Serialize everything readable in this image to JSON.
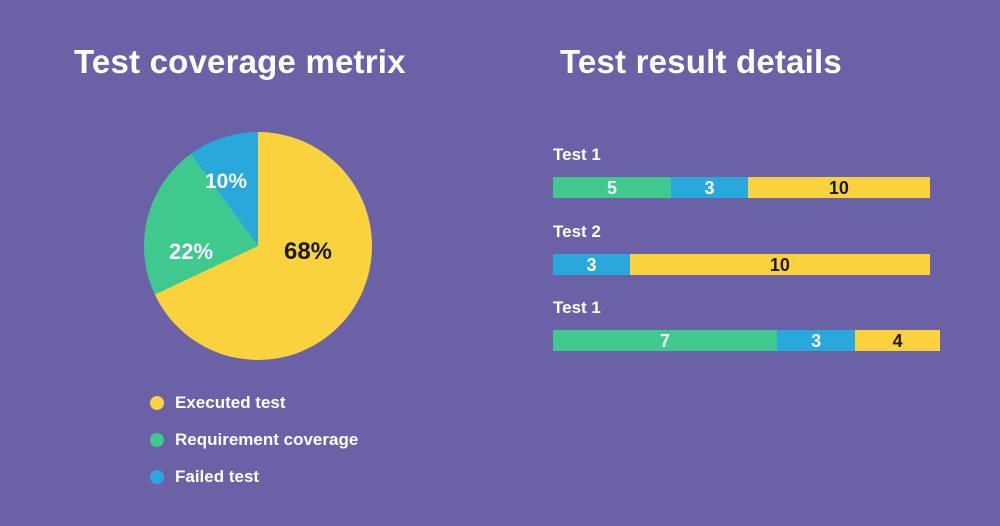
{
  "colors": {
    "background": "#6A61A7",
    "yellow": "#FAD23D",
    "green": "#3FC98F",
    "blue": "#29A9DB",
    "text_light": "#FFFFFF",
    "text_dark": "#1B1B1B"
  },
  "chart_data": [
    {
      "type": "pie",
      "title": "Test coverage metrix",
      "start_angle": "top",
      "direction": "clockwise",
      "legend_position": "below-left",
      "slices": [
        {
          "label": "Executed test",
          "value_pct": 68,
          "data_label": "68%",
          "color": "#FAD23D"
        },
        {
          "label": "Requirement coverage",
          "value_pct": 22,
          "data_label": "22%",
          "color": "#3FC98F"
        },
        {
          "label": "Failed test",
          "value_pct": 10,
          "data_label": "10%",
          "color": "#29A9DB"
        }
      ]
    },
    {
      "type": "bar",
      "subtype": "horizontal-stacked",
      "title": "Test result details",
      "categories": [
        "Test 1",
        "Test 2",
        "Test 1"
      ],
      "rows": [
        {
          "category": "Test 1",
          "segments": [
            {
              "series": "Requirement coverage",
              "value": 5,
              "color": "#3FC98F"
            },
            {
              "series": "Failed test",
              "value": 3,
              "color": "#29A9DB"
            },
            {
              "series": "Executed test",
              "value": 10,
              "color": "#FAD23D"
            }
          ]
        },
        {
          "category": "Test 2",
          "segments": [
            {
              "series": "Failed test",
              "value": 3,
              "color": "#29A9DB"
            },
            {
              "series": "Executed test",
              "value": 10,
              "color": "#FAD23D"
            }
          ]
        },
        {
          "category": "Test 1",
          "segments": [
            {
              "series": "Requirement coverage",
              "value": 7,
              "color": "#3FC98F"
            },
            {
              "series": "Failed test",
              "value": 3,
              "color": "#29A9DB"
            },
            {
              "series": "Executed test",
              "value": 4,
              "color": "#FAD23D"
            }
          ]
        }
      ]
    }
  ]
}
